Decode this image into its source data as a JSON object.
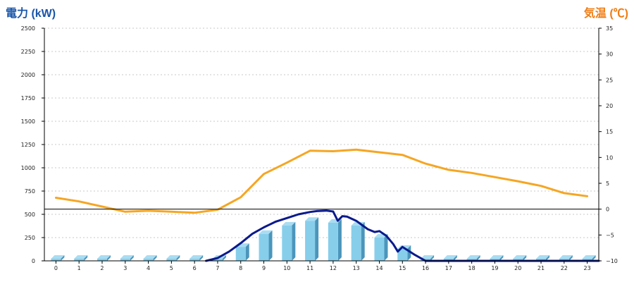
{
  "chart_data": {
    "type": "bar",
    "left_axis_title": "電力 (kW)",
    "right_axis_title": "気温 (℃)",
    "colors": {
      "left_title": "#1a56a8",
      "right_title": "#f07c12",
      "bars": "#87ceeb",
      "power_line": "#0a1a8c",
      "temp_line": "#f5a623",
      "zero_line": "#000000",
      "grid": "#c8c8c8"
    },
    "categories": [
      "0",
      "1",
      "2",
      "3",
      "4",
      "5",
      "6",
      "7",
      "8",
      "9",
      "10",
      "11",
      "12",
      "13",
      "14",
      "15",
      "16",
      "17",
      "18",
      "19",
      "20",
      "21",
      "22",
      "23"
    ],
    "ylim_left": [
      0,
      2500
    ],
    "yticks_left": [
      "0",
      "250",
      "500",
      "750",
      "1000",
      "1250",
      "1500",
      "1750",
      "2000",
      "2250",
      "2500"
    ],
    "ylim_right": [
      -10,
      35
    ],
    "yticks_right": [
      "−10",
      "−5",
      "0",
      "5",
      "10",
      "15",
      "20",
      "25",
      "30",
      "35"
    ],
    "grid": true,
    "series": [
      {
        "kind": "bar",
        "axis": "left",
        "values": [
          0,
          0,
          0,
          0,
          0,
          0,
          0,
          20,
          150,
          290,
          380,
          430,
          410,
          380,
          250,
          130,
          20,
          0,
          0,
          0,
          0,
          0,
          0,
          0
        ]
      },
      {
        "kind": "line",
        "axis": "left",
        "color": "power",
        "x": [
          6.5,
          7,
          7.5,
          8,
          8.5,
          9,
          9.5,
          10,
          10.5,
          11,
          11.3,
          11.7,
          12,
          12.2,
          12.4,
          12.6,
          13,
          13.5,
          13.8,
          14,
          14.3,
          14.6,
          14.8,
          15,
          15.5,
          16,
          16.5,
          17,
          23.5
        ],
        "values": [
          0,
          30,
          100,
          190,
          290,
          360,
          420,
          460,
          500,
          525,
          535,
          540,
          530,
          430,
          480,
          475,
          430,
          340,
          310,
          320,
          270,
          180,
          100,
          150,
          70,
          0,
          0,
          0,
          0
        ]
      },
      {
        "kind": "line",
        "axis": "right",
        "color": "temp",
        "x": [
          0,
          1,
          2,
          3,
          4,
          5,
          6,
          7,
          8,
          9,
          10,
          11,
          12,
          13,
          14,
          15,
          16,
          17,
          18,
          19,
          20,
          21,
          22,
          23
        ],
        "values": [
          2.2,
          1.5,
          0.5,
          -0.5,
          -0.3,
          -0.5,
          -0.7,
          -0.1,
          2.3,
          6.8,
          9,
          11.3,
          11.2,
          11.5,
          11,
          10.5,
          8.8,
          7.6,
          7,
          6.2,
          5.4,
          4.5,
          3.1,
          2.5
        ]
      }
    ]
  }
}
